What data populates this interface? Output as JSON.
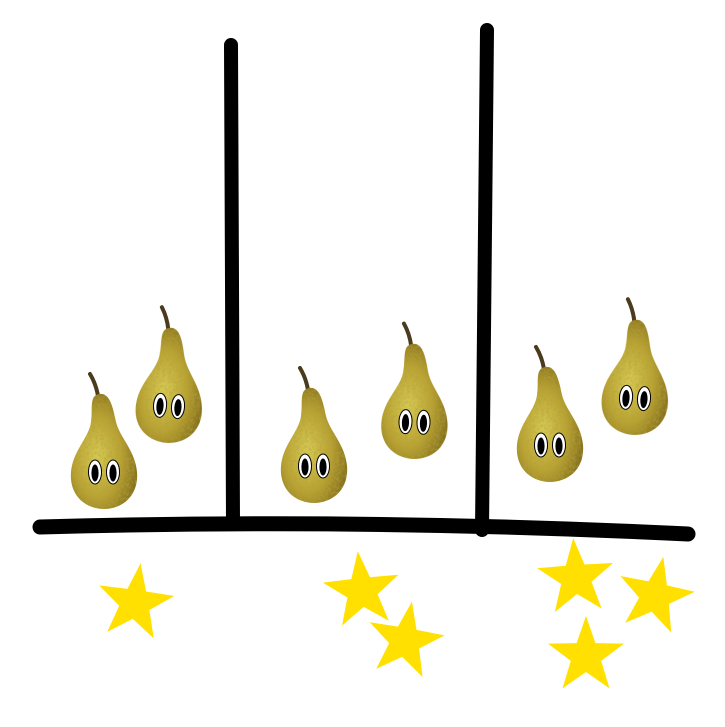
{
  "scene": {
    "description_text": "",
    "colors": {
      "background": "#ffffff",
      "lines": "#000000",
      "star": "#FFE000",
      "pear_body": "#B8A232",
      "pear_shadow": "#8C7620",
      "pear_highlight": "#D8CB55",
      "stem": "#4A3A1E",
      "eye_white": "#ffffff",
      "eye_black": "#000000"
    },
    "columns": [
      {
        "label_name": "left",
        "pear_count": 2,
        "star_count": 1
      },
      {
        "label_name": "middle",
        "pear_count": 2,
        "star_count": 2
      },
      {
        "label_name": "right",
        "pear_count": 2,
        "star_count": 3
      }
    ],
    "icons": {
      "pear": "pear-with-eyes-icon",
      "star": "star-icon"
    }
  }
}
